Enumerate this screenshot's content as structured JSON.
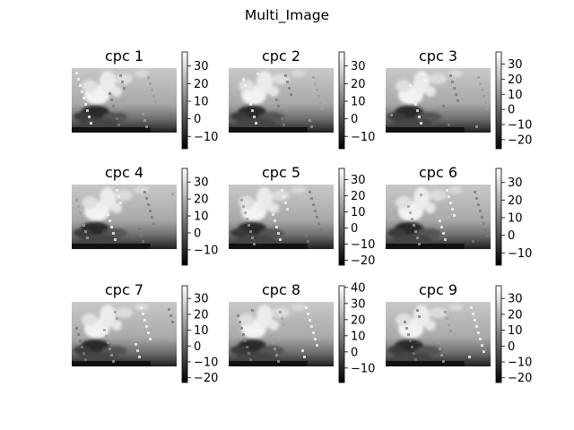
{
  "figure": {
    "title": "Multi_Image"
  },
  "chart_data": {
    "type": "heatmap",
    "title": "Multi_Image",
    "colormap": "gray",
    "panels": [
      {
        "title": "cpc 1",
        "vmin": -17,
        "vmax": 38,
        "colorbar_ticks": [
          30,
          20,
          10,
          0,
          -10
        ]
      },
      {
        "title": "cpc 2",
        "vmin": -17,
        "vmax": 38,
        "colorbar_ticks": [
          30,
          20,
          10,
          0,
          -10
        ]
      },
      {
        "title": "cpc 3",
        "vmin": -26,
        "vmax": 38,
        "colorbar_ticks": [
          30,
          20,
          10,
          0,
          -10,
          -20
        ]
      },
      {
        "title": "cpc 4",
        "vmin": -19,
        "vmax": 38,
        "colorbar_ticks": [
          30,
          20,
          10,
          0,
          -10
        ]
      },
      {
        "title": "cpc 5",
        "vmin": -23,
        "vmax": 37,
        "colorbar_ticks": [
          30,
          20,
          10,
          0,
          -10,
          -20
        ]
      },
      {
        "title": "cpc 6",
        "vmin": -17,
        "vmax": 38,
        "colorbar_ticks": [
          30,
          20,
          10,
          0,
          -10
        ]
      },
      {
        "title": "cpc 7",
        "vmin": -23,
        "vmax": 38,
        "colorbar_ticks": [
          30,
          20,
          10,
          0,
          -10,
          -20
        ]
      },
      {
        "title": "cpc 8",
        "vmin": -19,
        "vmax": 41,
        "colorbar_ticks": [
          40,
          30,
          20,
          10,
          0,
          -10
        ]
      },
      {
        "title": "cpc 9",
        "vmin": -23,
        "vmax": 38,
        "colorbar_ticks": [
          30,
          20,
          10,
          0,
          -10,
          -20
        ]
      }
    ]
  }
}
